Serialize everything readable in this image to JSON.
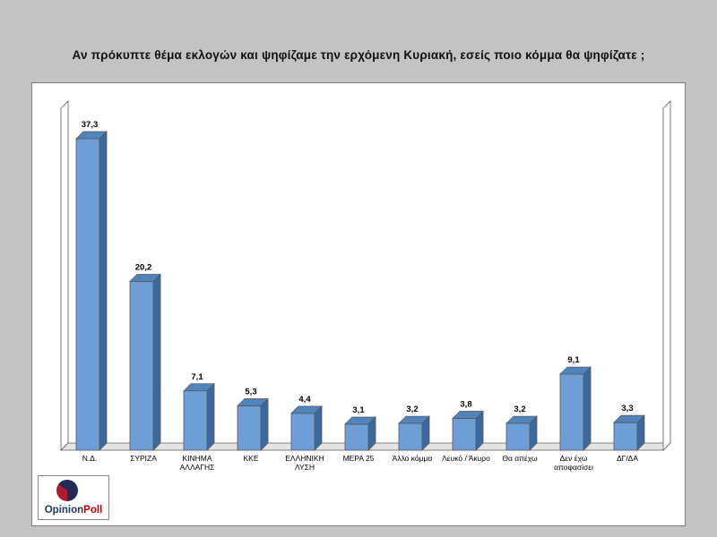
{
  "title": "Αν πρόκυπτε θέμα εκλογών και ψηφίζαμε την ερχόμενη Κυριακή, εσείς ποιο κόμμα θα ψηφίζατε ;",
  "logo": {
    "opinion": "Opinion",
    "poll": "Poll",
    "opinion_color": "#1f3864",
    "poll_color": "#c00000"
  },
  "chart_data": {
    "type": "bar",
    "style": "3d-column",
    "title": "Αν πρόκυπτε θέμα εκλογών και ψηφίζαμε την ερχόμενη Κυριακή, εσείς ποιο κόμμα θα ψηφίζατε ;",
    "categories": [
      "Ν.Δ.",
      "ΣΥΡΙΖΑ",
      "ΚΙΝΗΜΑ ΑΛΛΑΓΗΣ",
      "ΚΚΕ",
      "ΕΛΛΗΝΙΚΗ ΛΥΣΗ",
      "ΜΕΡΑ 25",
      "Άλλο κόμμα",
      "Λευκό / Άκυρο",
      "Θα απέχω",
      "Δεν έχω αποφασίσει",
      "ΔΓ/ΔΑ"
    ],
    "category_lines": [
      [
        "Ν.Δ."
      ],
      [
        "ΣΥΡΙΖΑ"
      ],
      [
        "ΚΙΝΗΜΑ",
        "ΑΛΛΑΓΗΣ"
      ],
      [
        "ΚΚΕ"
      ],
      [
        "ΕΛΛΗΝΙΚΗ",
        "ΛΥΣΗ"
      ],
      [
        "ΜΕΡΑ 25"
      ],
      [
        "Άλλο κόμμα"
      ],
      [
        "Λευκό / Άκυρο"
      ],
      [
        "Θα απέχω"
      ],
      [
        "Δεν έχω",
        "αποφασίσει"
      ],
      [
        "ΔΓ/ΔΑ"
      ]
    ],
    "values": [
      37.3,
      20.2,
      7.1,
      5.3,
      4.4,
      3.1,
      3.2,
      3.8,
      3.2,
      9.1,
      3.3
    ],
    "value_labels": [
      "37,3",
      "20,2",
      "7,1",
      "5,3",
      "4,4",
      "3,1",
      "3,2",
      "3,8",
      "3,2",
      "9,1",
      "3,3"
    ],
    "xlabel": "",
    "ylabel": "",
    "ylim": [
      0,
      40
    ],
    "grid": false,
    "legend": false,
    "colors": {
      "bar_front": "#6d9ed7",
      "bar_side": "#39699e",
      "bar_top": "#5084bd",
      "wall_fill": "#ffffff",
      "floor_fill": "#e3e3e3",
      "outline": "#595959"
    }
  }
}
